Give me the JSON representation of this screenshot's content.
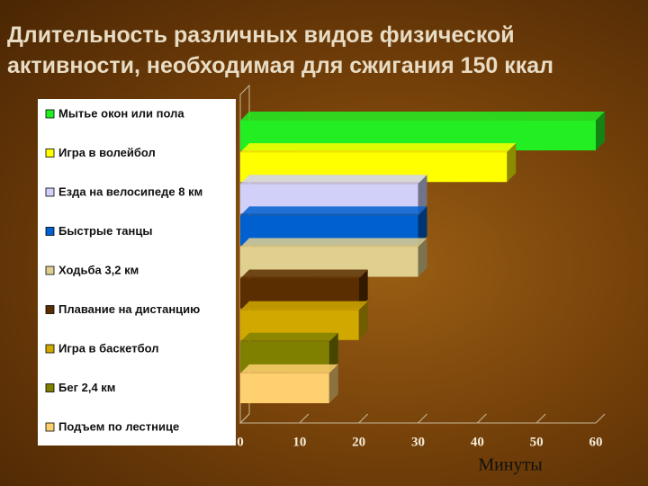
{
  "chart_data": {
    "type": "bar",
    "orientation": "horizontal",
    "title": "Длительность различных видов физической активности, необходимая для сжигания 150 ккал",
    "x_label": "Минуты",
    "categories": [
      "Мытье окон или пола",
      "Игра в волейбол",
      "Езда на велосипеде 8 км",
      "Быстрые танцы",
      "Ходьба 3,2 км",
      "Плавание на дистанцию",
      "Игра в баскетбол",
      "Бег 2,4 км",
      "Подъем по лестнице"
    ],
    "values": [
      60,
      45,
      30,
      30,
      30,
      20,
      20,
      15,
      15
    ],
    "colors": [
      "#22ee22",
      "#ffff00",
      "#d0d0f8",
      "#0060d0",
      "#e0d090",
      "#5a2e00",
      "#d0a800",
      "#808000",
      "#ffd070"
    ],
    "xlim": [
      0,
      60
    ],
    "xticks": [
      0,
      10,
      20,
      30,
      40,
      50,
      60
    ]
  }
}
